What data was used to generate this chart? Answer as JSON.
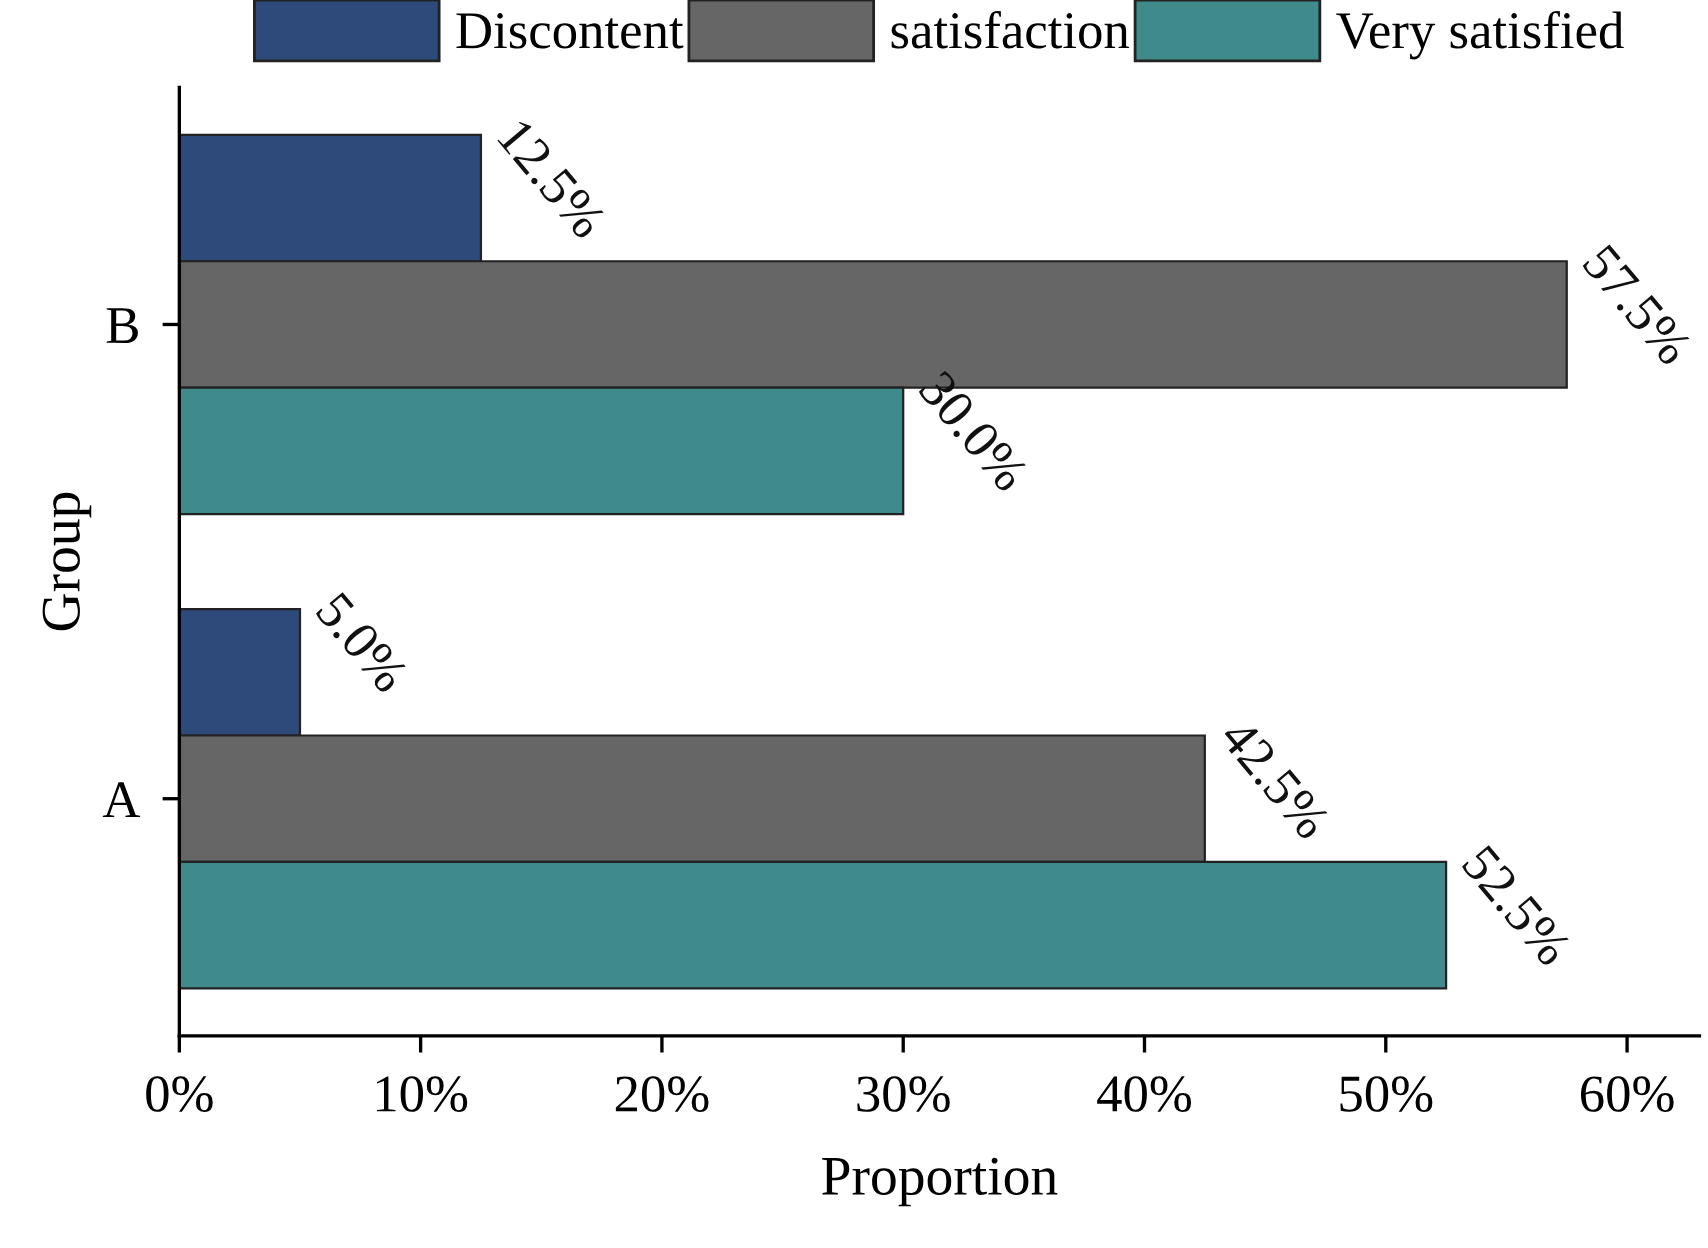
{
  "chart_data": {
    "type": "bar",
    "orientation": "horizontal",
    "xlabel": "Proportion",
    "ylabel": "Group",
    "categories": [
      "B",
      "A"
    ],
    "series": [
      {
        "name": "Discontent",
        "color": "#2e4a7a",
        "values": [
          12.5,
          5.0
        ],
        "value_labels": [
          "12.5%",
          "5.0%"
        ]
      },
      {
        "name": "satisfaction",
        "color": "#666666",
        "values": [
          57.5,
          42.5
        ],
        "value_labels": [
          "57.5%",
          "42.5%"
        ]
      },
      {
        "name": "Very satisfied",
        "color": "#3f8b8b",
        "values": [
          30.0,
          52.5
        ],
        "value_labels": [
          "30.0%",
          "52.5%"
        ]
      }
    ],
    "xlim": [
      0,
      63
    ],
    "xticks": [
      {
        "value": 0,
        "label": "0%"
      },
      {
        "value": 10,
        "label": "10%"
      },
      {
        "value": 20,
        "label": "20%"
      },
      {
        "value": 30,
        "label": "30%"
      },
      {
        "value": 40,
        "label": "40%"
      },
      {
        "value": 50,
        "label": "50%"
      },
      {
        "value": 60,
        "label": "60%"
      }
    ],
    "legend": "top",
    "grid": false
  }
}
